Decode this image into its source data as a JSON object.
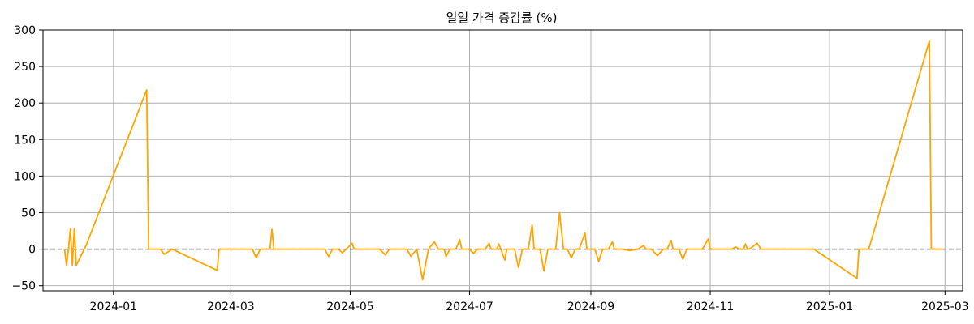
{
  "chart_data": {
    "type": "line",
    "title": "일일 가격 증감률 (%)",
    "xlabel": "",
    "ylabel": "",
    "ylim": [
      -57,
      300
    ],
    "xlim": [
      "2023-11-26",
      "2025-03-10"
    ],
    "yticks": [
      -50,
      0,
      50,
      100,
      150,
      200,
      250,
      300
    ],
    "xticks": [
      "2024-01",
      "2024-03",
      "2024-05",
      "2024-07",
      "2024-09",
      "2024-11",
      "2025-01",
      "2025-03"
    ],
    "xtick_dates": [
      "2024-01-01",
      "2024-03-01",
      "2024-05-01",
      "2024-07-01",
      "2024-09-01",
      "2024-11-01",
      "2025-01-01",
      "2025-03-01"
    ],
    "grid": true,
    "zero_line": {
      "value": 0,
      "style": "dashed",
      "color": "#808080"
    },
    "series": [
      {
        "color": "#FFA500",
        "points": [
          [
            "2023-12-07",
            0
          ],
          [
            "2023-12-08",
            -22
          ],
          [
            "2023-12-09",
            0
          ],
          [
            "2023-12-10",
            28
          ],
          [
            "2023-12-11",
            -22
          ],
          [
            "2023-12-12",
            28
          ],
          [
            "2023-12-13",
            -22
          ],
          [
            "2023-12-18",
            5
          ],
          [
            "2024-01-18",
            218
          ],
          [
            "2024-01-19",
            0
          ],
          [
            "2024-01-25",
            0
          ],
          [
            "2024-01-27",
            -7
          ],
          [
            "2024-01-31",
            0
          ],
          [
            "2024-02-23",
            -29
          ],
          [
            "2024-02-24",
            0
          ],
          [
            "2024-03-12",
            0
          ],
          [
            "2024-03-14",
            -12
          ],
          [
            "2024-03-16",
            0
          ],
          [
            "2024-03-21",
            0
          ],
          [
            "2024-03-22",
            27
          ],
          [
            "2024-03-23",
            0
          ],
          [
            "2024-04-18",
            0
          ],
          [
            "2024-04-20",
            -10
          ],
          [
            "2024-04-22",
            0
          ],
          [
            "2024-04-25",
            0
          ],
          [
            "2024-04-27",
            -5
          ],
          [
            "2024-05-02",
            8
          ],
          [
            "2024-05-03",
            0
          ],
          [
            "2024-05-16",
            0
          ],
          [
            "2024-05-19",
            -8
          ],
          [
            "2024-05-21",
            0
          ],
          [
            "2024-05-30",
            0
          ],
          [
            "2024-06-01",
            -10
          ],
          [
            "2024-06-04",
            0
          ],
          [
            "2024-06-07",
            -42
          ],
          [
            "2024-06-10",
            0
          ],
          [
            "2024-06-13",
            10
          ],
          [
            "2024-06-15",
            0
          ],
          [
            "2024-06-18",
            0
          ],
          [
            "2024-06-19",
            -10
          ],
          [
            "2024-06-21",
            0
          ],
          [
            "2024-06-24",
            0
          ],
          [
            "2024-06-26",
            13
          ],
          [
            "2024-06-27",
            0
          ],
          [
            "2024-07-01",
            0
          ],
          [
            "2024-07-03",
            -6
          ],
          [
            "2024-07-05",
            0
          ],
          [
            "2024-07-09",
            0
          ],
          [
            "2024-07-11",
            8
          ],
          [
            "2024-07-12",
            0
          ],
          [
            "2024-07-15",
            0
          ],
          [
            "2024-07-16",
            7
          ],
          [
            "2024-07-19",
            -15
          ],
          [
            "2024-07-20",
            0
          ],
          [
            "2024-07-24",
            0
          ],
          [
            "2024-07-26",
            -25
          ],
          [
            "2024-07-28",
            0
          ],
          [
            "2024-07-31",
            0
          ],
          [
            "2024-08-02",
            33
          ],
          [
            "2024-08-03",
            0
          ],
          [
            "2024-08-06",
            0
          ],
          [
            "2024-08-08",
            -30
          ],
          [
            "2024-08-10",
            0
          ],
          [
            "2024-08-14",
            0
          ],
          [
            "2024-08-16",
            50
          ],
          [
            "2024-08-18",
            0
          ],
          [
            "2024-08-20",
            0
          ],
          [
            "2024-08-22",
            -12
          ],
          [
            "2024-08-24",
            0
          ],
          [
            "2024-08-26",
            0
          ],
          [
            "2024-08-29",
            22
          ],
          [
            "2024-08-30",
            0
          ],
          [
            "2024-09-03",
            0
          ],
          [
            "2024-09-05",
            -17
          ],
          [
            "2024-09-07",
            0
          ],
          [
            "2024-09-10",
            0
          ],
          [
            "2024-09-12",
            10
          ],
          [
            "2024-09-13",
            0
          ],
          [
            "2024-09-17",
            0
          ],
          [
            "2024-09-21",
            -2
          ],
          [
            "2024-09-25",
            0
          ],
          [
            "2024-09-28",
            5
          ],
          [
            "2024-09-29",
            0
          ],
          [
            "2024-10-02",
            0
          ],
          [
            "2024-10-05",
            -9
          ],
          [
            "2024-10-08",
            0
          ],
          [
            "2024-10-10",
            0
          ],
          [
            "2024-10-12",
            12
          ],
          [
            "2024-10-13",
            0
          ],
          [
            "2024-10-16",
            0
          ],
          [
            "2024-10-18",
            -14
          ],
          [
            "2024-10-20",
            0
          ],
          [
            "2024-10-28",
            0
          ],
          [
            "2024-10-31",
            14
          ],
          [
            "2024-11-01",
            0
          ],
          [
            "2024-11-12",
            0
          ],
          [
            "2024-11-14",
            3
          ],
          [
            "2024-11-16",
            0
          ],
          [
            "2024-11-18",
            0
          ],
          [
            "2024-11-19",
            7
          ],
          [
            "2024-11-20",
            0
          ],
          [
            "2024-11-21",
            0
          ],
          [
            "2024-11-25",
            8
          ],
          [
            "2024-11-27",
            0
          ],
          [
            "2024-12-24",
            0
          ],
          [
            "2025-01-15",
            -40
          ],
          [
            "2025-01-16",
            0
          ],
          [
            "2025-01-21",
            0
          ],
          [
            "2025-02-21",
            285
          ],
          [
            "2025-02-22",
            0
          ],
          [
            "2025-02-28",
            0
          ]
        ]
      }
    ]
  }
}
